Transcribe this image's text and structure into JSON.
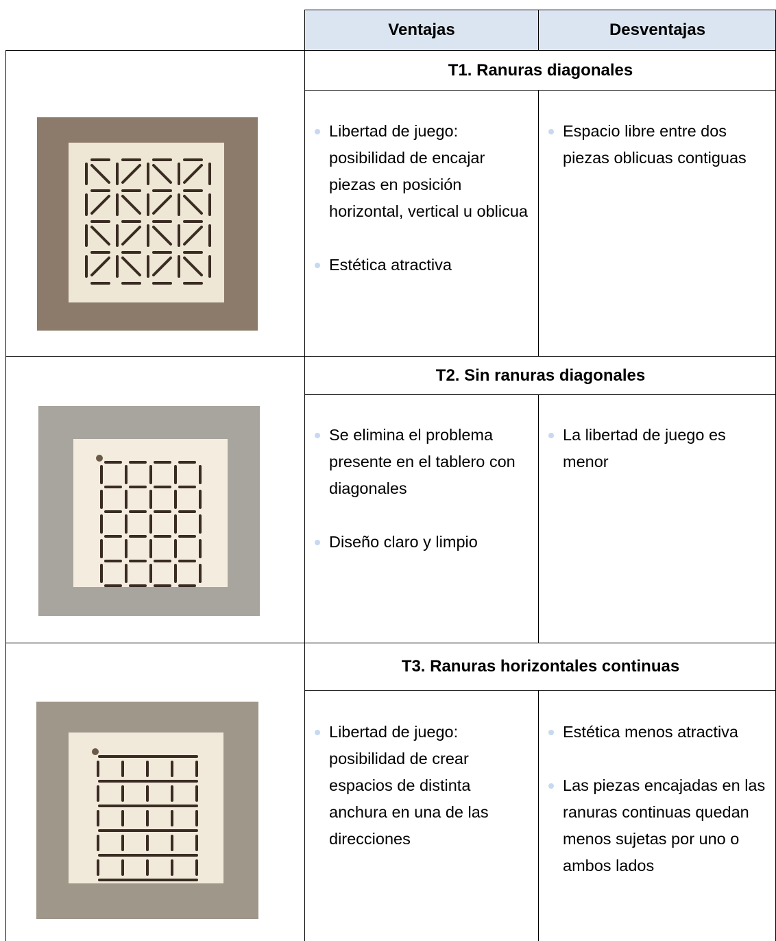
{
  "table": {
    "header": [
      "Ventajas",
      "Desventajas"
    ],
    "rows": [
      {
        "title": "T1. Ranuras diagonales",
        "advantages": [
          "Libertad de juego: posibilidad de encajar piezas en posición horizontal, vertical u oblicua",
          "Estética atractiva"
        ],
        "disadvantages": [
          "Espacio libre entre dos piezas oblicuas contiguas"
        ]
      },
      {
        "title": "T2. Sin ranuras diagonales",
        "advantages": [
          "Se elimina el problema presente en el tablero con diagonales",
          "Diseño claro y limpio"
        ],
        "disadvantages": [
          "La libertad de juego es menor"
        ]
      },
      {
        "title": "T3. Ranuras horizontales continuas",
        "advantages": [
          "Libertad de juego: posibilidad de crear espacios de distinta anchura en una de las direcciones"
        ],
        "disadvantages": [
          "Estética menos atractiva",
          "Las piezas encajadas en las ranuras continuas quedan menos sujetas por uno o ambos lados"
        ]
      }
    ]
  }
}
